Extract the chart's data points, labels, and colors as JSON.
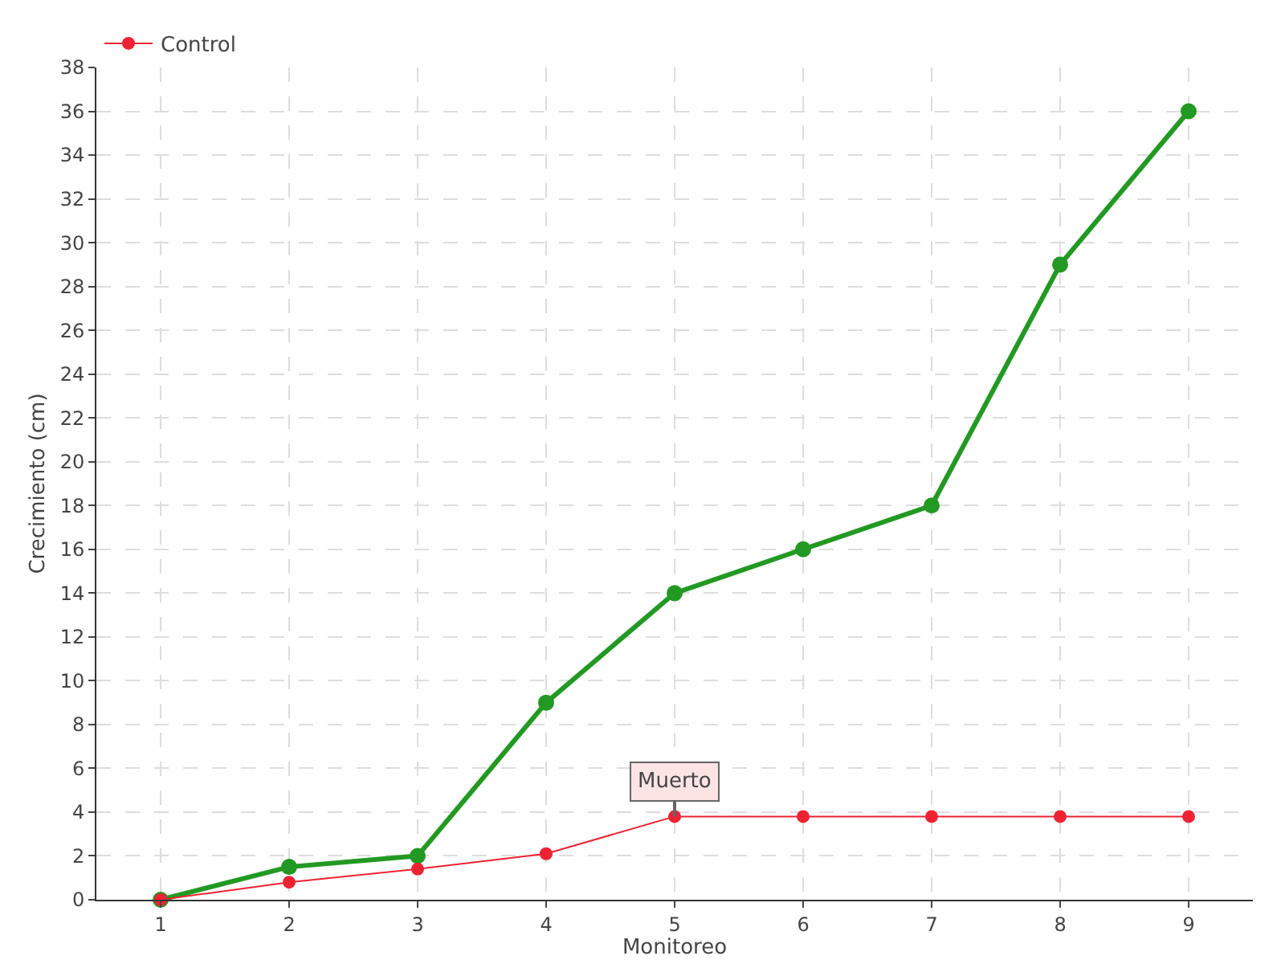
{
  "chart_data": {
    "type": "line",
    "xlabel": "Monitoreo",
    "ylabel": "Crecimiento (cm)",
    "x": [
      1,
      2,
      3,
      4,
      5,
      6,
      7,
      8,
      9
    ],
    "series": [
      {
        "color": "#229922",
        "values": [
          0,
          1.5,
          2,
          9,
          14,
          16,
          18,
          29,
          36
        ]
      },
      {
        "name": "Control",
        "color": "#ee2233",
        "values": [
          0,
          0.8,
          1.4,
          2.1,
          3.8,
          3.8,
          3.8,
          3.8,
          3.8
        ]
      }
    ],
    "xlim": [
      0.5,
      9.5
    ],
    "xticks": [
      1,
      2,
      3,
      4,
      5,
      6,
      7,
      8,
      9
    ],
    "ylim": [
      0,
      38
    ],
    "yticks": [
      0,
      2,
      4,
      6,
      8,
      10,
      12,
      14,
      16,
      18,
      20,
      22,
      24,
      26,
      28,
      30,
      32,
      34,
      36,
      38
    ],
    "annotations": [
      {
        "text": "Muerto",
        "x": 5,
        "y": 3.8
      }
    ],
    "grid": true,
    "legend": "top left",
    "marker": "circle",
    "line_style": "solid"
  }
}
